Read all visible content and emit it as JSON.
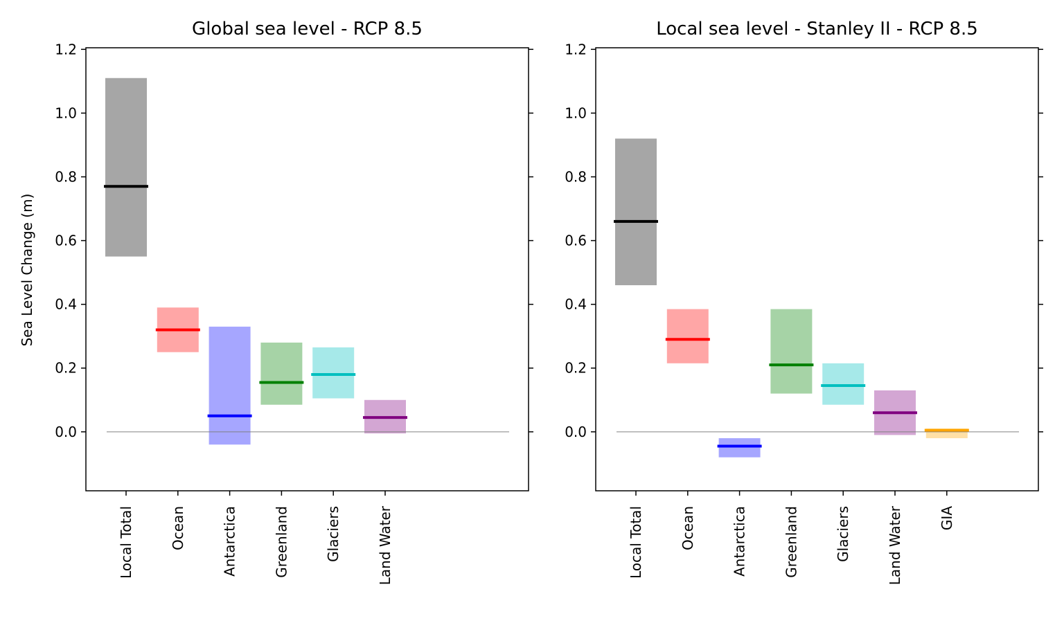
{
  "chart_data": [
    {
      "type": "bar",
      "title": "Global sea level - RCP 8.5",
      "xlabel": "",
      "ylabel": "Sea Level Change (m)",
      "ylim": [
        -0.185,
        1.205
      ],
      "yticks": [
        0.0,
        0.2,
        0.4,
        0.6,
        0.8,
        1.0,
        1.2
      ],
      "ytick_labels": [
        "0.0",
        "0.2",
        "0.4",
        "0.6",
        "0.8",
        "1.0",
        "1.2"
      ],
      "categories": [
        "Local Total",
        "Ocean",
        "Antarctica",
        "Greenland",
        "Glaciers",
        "Land Water"
      ],
      "series": [
        {
          "category": "Local Total",
          "median": 0.77,
          "low": 0.55,
          "high": 1.11,
          "color": "#000000"
        },
        {
          "category": "Ocean",
          "median": 0.32,
          "low": 0.25,
          "high": 0.39,
          "color": "#ff0000"
        },
        {
          "category": "Antarctica",
          "median": 0.05,
          "low": -0.04,
          "high": 0.33,
          "color": "#0000ff"
        },
        {
          "category": "Greenland",
          "median": 0.155,
          "low": 0.085,
          "high": 0.28,
          "color": "#008000"
        },
        {
          "category": "Glaciers",
          "median": 0.18,
          "low": 0.105,
          "high": 0.265,
          "color": "#00bfbf"
        },
        {
          "category": "Land Water",
          "median": 0.045,
          "low": -0.005,
          "high": 0.1,
          "color": "#800080"
        }
      ],
      "zero_line": true,
      "grid": false
    },
    {
      "type": "bar",
      "title": "Local sea level - Stanley II - RCP 8.5",
      "xlabel": "",
      "ylabel": "",
      "ylim": [
        -0.185,
        1.205
      ],
      "yticks": [
        0.0,
        0.2,
        0.4,
        0.6,
        0.8,
        1.0,
        1.2
      ],
      "ytick_labels": [
        "0.0",
        "0.2",
        "0.4",
        "0.6",
        "0.8",
        "1.0",
        "1.2"
      ],
      "categories": [
        "Local Total",
        "Ocean",
        "Antarctica",
        "Greenland",
        "Glaciers",
        "Land Water",
        "GIA"
      ],
      "series": [
        {
          "category": "Local Total",
          "median": 0.66,
          "low": 0.46,
          "high": 0.92,
          "color": "#000000"
        },
        {
          "category": "Ocean",
          "median": 0.29,
          "low": 0.215,
          "high": 0.385,
          "color": "#ff0000"
        },
        {
          "category": "Antarctica",
          "median": -0.045,
          "low": -0.08,
          "high": -0.02,
          "color": "#0000ff"
        },
        {
          "category": "Greenland",
          "median": 0.21,
          "low": 0.12,
          "high": 0.385,
          "color": "#008000"
        },
        {
          "category": "Glaciers",
          "median": 0.145,
          "low": 0.085,
          "high": 0.215,
          "color": "#00bfbf"
        },
        {
          "category": "Land Water",
          "median": 0.06,
          "low": -0.01,
          "high": 0.13,
          "color": "#800080"
        },
        {
          "category": "GIA",
          "median": 0.005,
          "low": -0.02,
          "high": 0.01,
          "color": "#ffa500"
        }
      ],
      "zero_line": true,
      "grid": false
    }
  ]
}
